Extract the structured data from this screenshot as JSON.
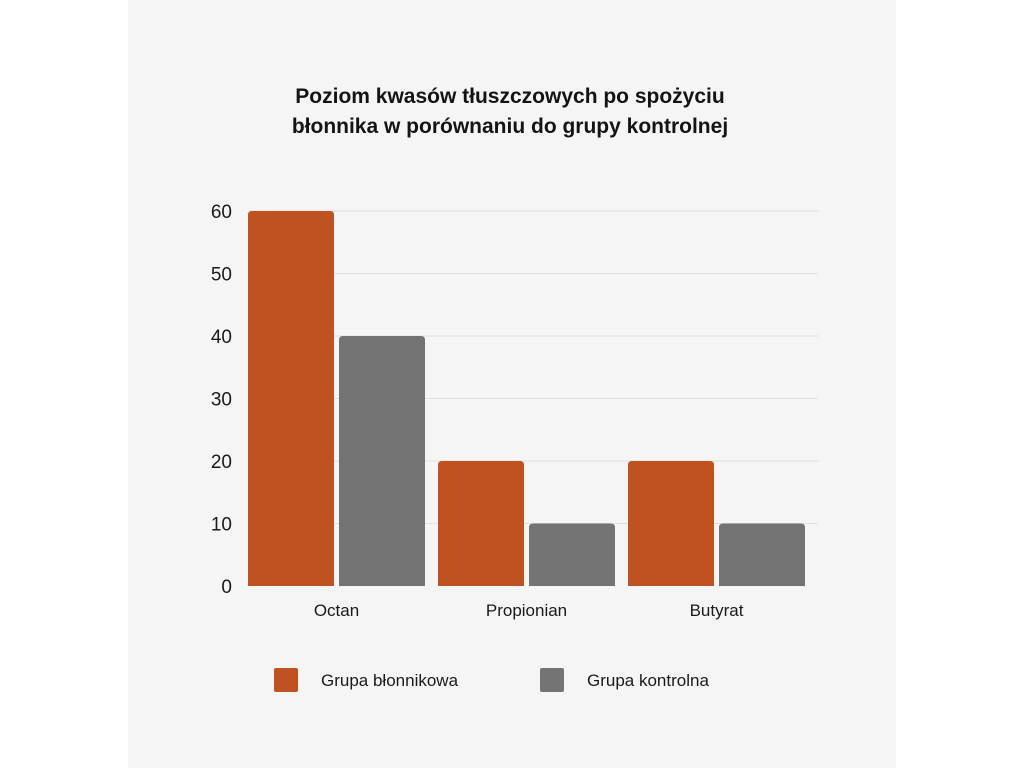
{
  "chart_data": {
    "type": "bar",
    "title_lines": [
      "Poziom kwasów tłuszczowych po spożyciu",
      "błonnika w porównaniu do grupy kontrolnej"
    ],
    "categories": [
      "Octan",
      "Propionian",
      "Butyrat"
    ],
    "series": [
      {
        "name": "Grupa błonnikowa",
        "values": [
          60,
          20,
          20
        ],
        "color": "#c05221"
      },
      {
        "name": "Grupa kontrolna",
        "values": [
          40,
          10,
          10
        ],
        "color": "#737373"
      }
    ],
    "y_ticks": [
      "0",
      "10",
      "20",
      "30",
      "40",
      "50",
      "60"
    ],
    "ylim": [
      0,
      60
    ],
    "xlabel": "",
    "ylabel": "",
    "grid": true,
    "legend_position": "bottom"
  }
}
